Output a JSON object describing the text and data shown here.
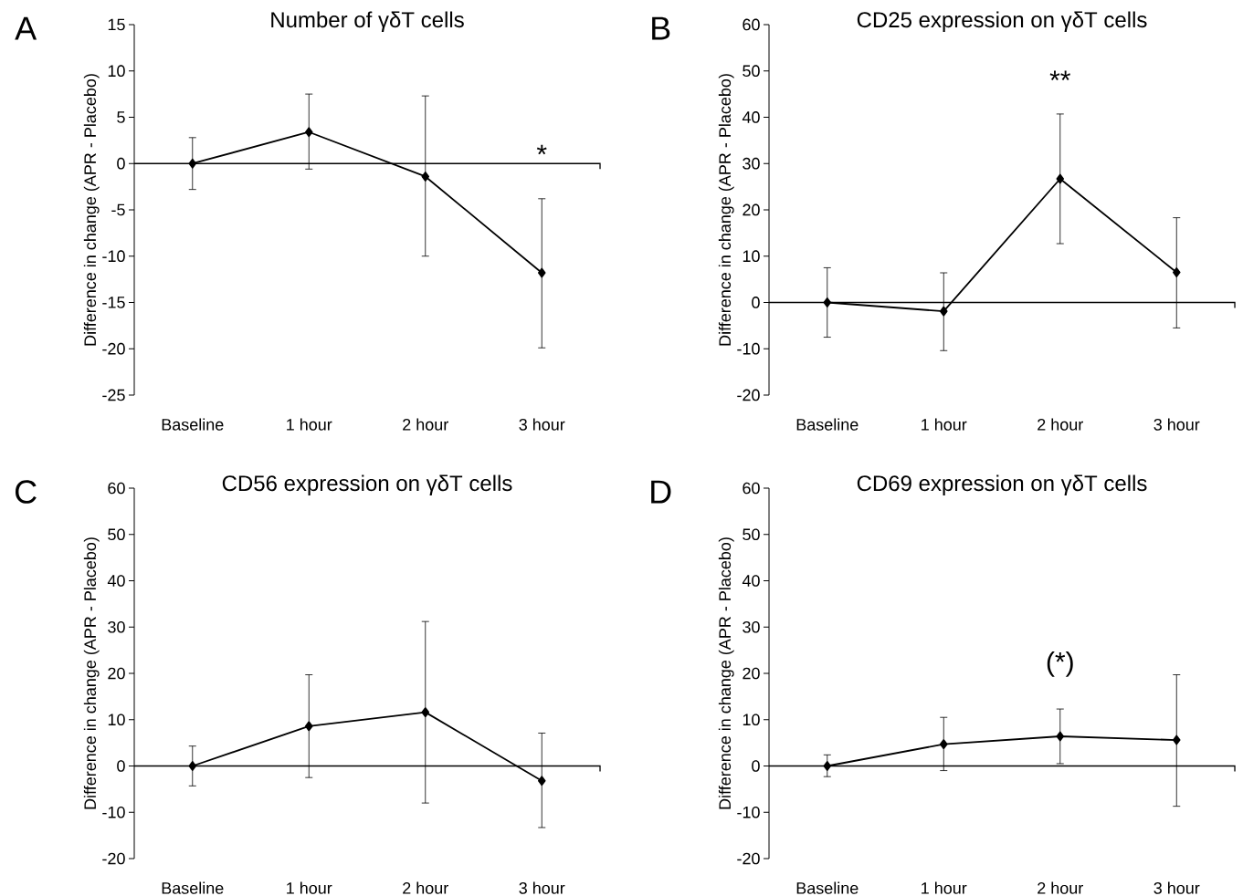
{
  "chart_data": [
    {
      "type": "line",
      "title": "Number of γδT cells",
      "ylabel": "Difference in change (APR - Placebo)",
      "categories": [
        "Baseline",
        "1 hour",
        "2 hour",
        "3 hour"
      ],
      "marker": "diamond",
      "ylim": [
        -25,
        15
      ],
      "yticks": [
        -25,
        -20,
        -15,
        -10,
        -5,
        0,
        5,
        10,
        15
      ],
      "series": [
        {
          "color": "#000000",
          "values": [
            0,
            3.4,
            -1.4,
            -11.8
          ],
          "errors": [
            [
              -2.8,
              2.8
            ],
            [
              -0.6,
              7.5
            ],
            [
              -10.0,
              7.3
            ],
            [
              -19.9,
              -3.8
            ]
          ]
        }
      ],
      "ref_lines": [
        {
          "axis": "y",
          "value": 0
        }
      ],
      "annotations": [
        "A",
        "*"
      ]
    },
    {
      "type": "line",
      "title": "CD25 expression on γδT cells",
      "ylabel": "Difference in change (APR - Placebo)",
      "categories": [
        "Baseline",
        "1 hour",
        "2 hour",
        "3 hour"
      ],
      "marker": "diamond",
      "ylim": [
        -20,
        60
      ],
      "yticks": [
        -20,
        -10,
        0,
        10,
        20,
        30,
        40,
        50,
        60
      ],
      "series": [
        {
          "color": "#000000",
          "values": [
            0,
            -1.9,
            26.7,
            6.5
          ],
          "errors": [
            [
              -7.5,
              7.5
            ],
            [
              -10.4,
              6.4
            ],
            [
              12.7,
              40.7
            ],
            [
              -5.5,
              18.3
            ]
          ]
        }
      ],
      "ref_lines": [
        {
          "axis": "y",
          "value": 0
        }
      ],
      "annotations": [
        "B",
        "**"
      ]
    },
    {
      "type": "line",
      "title": "CD56 expression on γδT cells",
      "ylabel": "Difference in change (APR - Placebo)",
      "categories": [
        "Baseline",
        "1 hour",
        "2 hour",
        "3 hour"
      ],
      "marker": "diamond",
      "ylim": [
        -20,
        60
      ],
      "yticks": [
        -20,
        -10,
        0,
        10,
        20,
        30,
        40,
        50,
        60
      ],
      "series": [
        {
          "color": "#000000",
          "values": [
            0,
            8.6,
            11.6,
            -3.2
          ],
          "errors": [
            [
              -4.3,
              4.3
            ],
            [
              -2.5,
              19.7
            ],
            [
              -8.0,
              31.2
            ],
            [
              -13.3,
              7.1
            ]
          ]
        }
      ],
      "ref_lines": [
        {
          "axis": "y",
          "value": 0
        }
      ],
      "annotations": [
        "C"
      ]
    },
    {
      "type": "line",
      "title": "CD69 expression on γδT cells",
      "ylabel": "Difference in change (APR - Placebo)",
      "categories": [
        "Baseline",
        "1 hour",
        "2 hour",
        "3 hour"
      ],
      "marker": "diamond",
      "ylim": [
        -20,
        60
      ],
      "yticks": [
        -20,
        -10,
        0,
        10,
        20,
        30,
        40,
        50,
        60
      ],
      "series": [
        {
          "color": "#000000",
          "values": [
            0,
            4.7,
            6.4,
            5.6
          ],
          "errors": [
            [
              -2.3,
              2.4
            ],
            [
              -1.0,
              10.5
            ],
            [
              0.5,
              12.3
            ],
            [
              -8.7,
              19.7
            ]
          ]
        }
      ],
      "ref_lines": [
        {
          "axis": "y",
          "value": 0
        }
      ],
      "annotations": [
        "D",
        "(*)"
      ]
    }
  ]
}
